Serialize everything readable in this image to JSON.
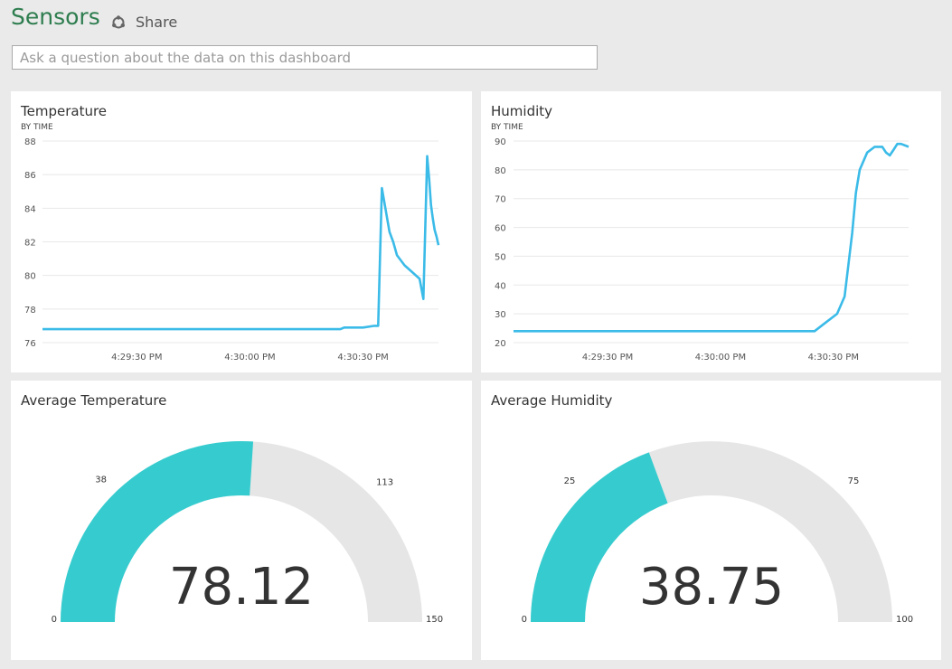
{
  "page": {
    "title": "Sensors",
    "share_label": "Share",
    "share_icon": "share-icon",
    "question_placeholder": "Ask a question about the data on this dashboard",
    "accent": "#3bbbe8",
    "gauge_fill": "#36cccf",
    "gauge_track": "#e6e6e6",
    "title_color": "#2e7d4f"
  },
  "tiles": {
    "temperature": {
      "title": "Temperature",
      "subtitle": "BY TIME"
    },
    "humidity": {
      "title": "Humidity",
      "subtitle": "BY TIME"
    },
    "avg_temperature": {
      "title": "Average Temperature"
    },
    "avg_humidity": {
      "title": "Average Humidity"
    }
  },
  "chart_data": [
    {
      "type": "line",
      "title": "Temperature",
      "subtitle": "BY TIME",
      "ylim": [
        76,
        88
      ],
      "yticks": [
        76,
        78,
        80,
        82,
        84,
        86,
        88
      ],
      "xlim": [
        "4:29:05 PM",
        "4:30:50 PM"
      ],
      "xticks": [
        "4:29:30 PM",
        "4:30:00 PM",
        "4:30:30 PM"
      ],
      "grid": true,
      "series": [
        {
          "x": [
            "4:29:05 PM",
            "4:29:30 PM",
            "4:30:00 PM",
            "4:30:24 PM",
            "4:30:25 PM",
            "4:30:30 PM",
            "4:30:33 PM",
            "4:30:34 PM",
            "4:30:35 PM",
            "4:30:37 PM",
            "4:30:38 PM",
            "4:30:39 PM",
            "4:30:41 PM",
            "4:30:43 PM",
            "4:30:45 PM",
            "4:30:46 PM",
            "4:30:47 PM",
            "4:30:47.5 PM",
            "4:30:48 PM",
            "4:30:48.5 PM",
            "4:30:49 PM",
            "4:30:49.5 PM",
            "4:30:50 PM"
          ],
          "y": [
            76.8,
            76.8,
            76.8,
            76.8,
            76.9,
            76.9,
            77.0,
            77.0,
            85.2,
            82.6,
            82.0,
            81.2,
            80.6,
            80.2,
            79.8,
            78.6,
            87.1,
            85.8,
            84.2,
            83.4,
            82.7,
            82.3,
            81.8
          ]
        }
      ]
    },
    {
      "type": "line",
      "title": "Humidity",
      "subtitle": "BY TIME",
      "ylim": [
        20,
        90
      ],
      "yticks": [
        20,
        30,
        40,
        50,
        60,
        70,
        80,
        90
      ],
      "xlim": [
        "4:29:05 PM",
        "4:30:50 PM"
      ],
      "xticks": [
        "4:29:30 PM",
        "4:30:00 PM",
        "4:30:30 PM"
      ],
      "grid": true,
      "series": [
        {
          "x": [
            "4:29:05 PM",
            "4:29:30 PM",
            "4:30:00 PM",
            "4:30:20 PM",
            "4:30:25 PM",
            "4:30:28 PM",
            "4:30:31 PM",
            "4:30:33 PM",
            "4:30:35 PM",
            "4:30:36 PM",
            "4:30:37 PM",
            "4:30:39 PM",
            "4:30:41 PM",
            "4:30:43 PM",
            "4:30:44 PM",
            "4:30:45 PM",
            "4:30:46 PM",
            "4:30:47 PM",
            "4:30:48 PM",
            "4:30:50 PM"
          ],
          "y": [
            24,
            24,
            24,
            24,
            24,
            27,
            30,
            36,
            58,
            72,
            80,
            86,
            88,
            88,
            86,
            85,
            87,
            89,
            89,
            88
          ]
        }
      ]
    },
    {
      "type": "gauge",
      "title": "Average Temperature",
      "value": 78.12,
      "display_value": "78.12",
      "min": 0,
      "max": 150,
      "target_low": 38,
      "target_high": 113
    },
    {
      "type": "gauge",
      "title": "Average Humidity",
      "value": 38.75,
      "display_value": "38.75",
      "min": 0,
      "max": 100,
      "target_low": 25,
      "target_high": 75
    }
  ]
}
